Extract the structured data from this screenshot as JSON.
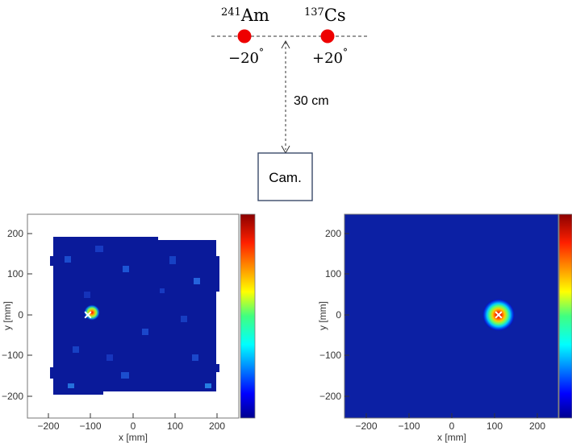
{
  "setup": {
    "source_left": {
      "mass_number": "241",
      "element": "Am",
      "angle": "−20",
      "degree_mark": "°",
      "color": "#ee0000"
    },
    "source_right": {
      "mass_number": "137",
      "element": "Cs",
      "angle": "+20",
      "degree_mark": "°",
      "color": "#ee0000"
    },
    "distance_label": "30 cm",
    "camera_label": "Cam."
  },
  "chart_data": [
    {
      "type": "heatmap",
      "xlabel": "x [mm]",
      "ylabel": "y [mm]",
      "xlim": [
        -250,
        250
      ],
      "ylim": [
        -250,
        250
      ],
      "x_ticks": [
        "−200",
        "−100",
        "0",
        "100",
        "200"
      ],
      "y_ticks": [
        "200",
        "100",
        "0",
        "−100",
        "−200"
      ],
      "background_color": "#00008b",
      "data_region": {
        "x": [
          -195,
          195
        ],
        "y": [
          -195,
          195
        ]
      },
      "hotspot": {
        "x": -95,
        "y": 5
      },
      "marker": {
        "symbol": "x",
        "x": -100,
        "y": 0
      },
      "colorbar": true
    },
    {
      "type": "heatmap",
      "xlabel": "x [mm]",
      "ylabel": "y [mm]",
      "xlim": [
        -250,
        250
      ],
      "ylim": [
        -250,
        250
      ],
      "x_ticks": [
        "−200",
        "−100",
        "0",
        "100",
        "200"
      ],
      "y_ticks": [
        "200",
        "100",
        "0",
        "−100",
        "−200"
      ],
      "background_color": "#00008b",
      "hotspot": {
        "x": 110,
        "y": 0
      },
      "marker": {
        "symbol": "x",
        "x": 110,
        "y": 0
      },
      "colorbar": true
    }
  ]
}
